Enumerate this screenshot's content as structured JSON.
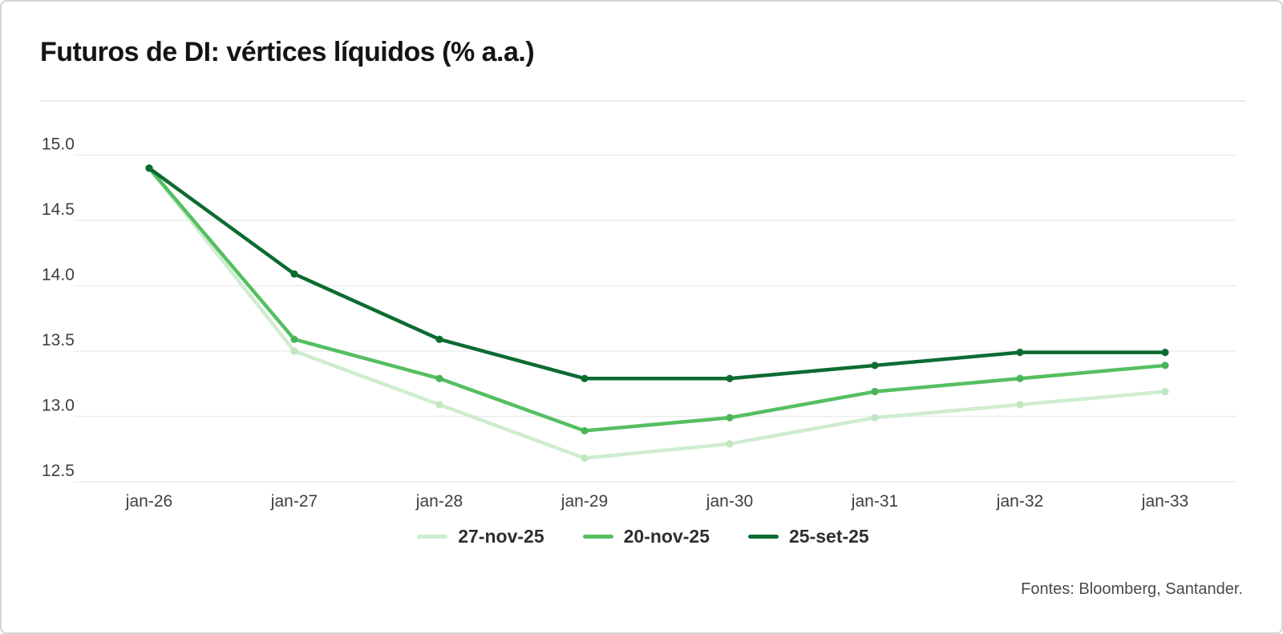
{
  "header": {
    "title": "Futuros de DI: vértices líquidos (% a.a.)"
  },
  "footer": {
    "source": "Fontes: Bloomberg, Santander."
  },
  "colors": {
    "series_light": "#cfeccf",
    "series_medium": "#55bf61",
    "series_dark": "#0d6b32",
    "gridline": "#ededed",
    "axis_text": "#3f3f3f"
  },
  "chart_data": {
    "type": "line",
    "title": "Futuros de DI: vértices líquidos (% a.a.)",
    "categories": [
      "jan-26",
      "jan-27",
      "jan-28",
      "jan-29",
      "jan-30",
      "jan-31",
      "jan-32",
      "jan-33"
    ],
    "series": [
      {
        "name": "27-nov-25",
        "color": "#cfeccf",
        "marker_color": "#c0e6c0",
        "values": [
          14.9,
          13.5,
          13.09,
          12.68,
          12.79,
          12.99,
          13.09,
          13.19
        ]
      },
      {
        "name": "20-nov-25",
        "color": "#55bf61",
        "marker_color": "#49b558",
        "values": [
          14.9,
          13.59,
          13.29,
          12.89,
          12.99,
          13.19,
          13.29,
          13.39
        ]
      },
      {
        "name": "25-set-25",
        "color": "#0d6b32",
        "marker_color": "#0d6b32",
        "values": [
          14.9,
          14.09,
          13.59,
          13.29,
          13.29,
          13.39,
          13.49,
          13.49
        ]
      }
    ],
    "ylim": [
      12.5,
      15.0
    ],
    "yticks": [
      15.0,
      14.5,
      14.0,
      13.5,
      13.0,
      12.5
    ],
    "ytick_labels": [
      "15.0",
      "14.5",
      "14.0",
      "13.5",
      "13.0",
      "12.5"
    ],
    "xlabel": "",
    "ylabel": "% a.a.",
    "grid": "horizontal",
    "legend_position": "bottom"
  }
}
